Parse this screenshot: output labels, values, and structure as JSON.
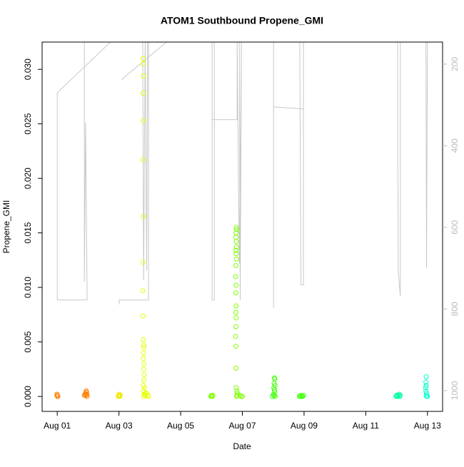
{
  "chart_data": {
    "type": "scatter",
    "title": "ATOM1 Southbound Propene_GMI",
    "x_label": "Date",
    "y_label": "Propene_GMI",
    "xlim": [
      0.51,
      13.49
    ],
    "ylim": [
      -0.00137,
      0.0325
    ],
    "y2lim": [
      1051,
      146
    ],
    "xticks": [
      {
        "value": 1,
        "label": "Aug 01"
      },
      {
        "value": 3,
        "label": "Aug 03"
      },
      {
        "value": 5,
        "label": "Aug 05"
      },
      {
        "value": 7,
        "label": "Aug 07"
      },
      {
        "value": 9,
        "label": "Aug 09"
      },
      {
        "value": 11,
        "label": "Aug 11"
      },
      {
        "value": 13,
        "label": "Aug 13"
      }
    ],
    "yticks": [
      {
        "value": 0,
        "label": "0.000"
      },
      {
        "value": 0.005,
        "label": "0.005"
      },
      {
        "value": 0.01,
        "label": "0.010"
      },
      {
        "value": 0.015,
        "label": "0.015"
      },
      {
        "value": 0.02,
        "label": "0.020"
      },
      {
        "value": 0.025,
        "label": "0.025"
      },
      {
        "value": 0.03,
        "label": "0.030"
      }
    ],
    "y2ticks": [
      200,
      400,
      600,
      800,
      1000
    ],
    "y2color": "#bbbbbb",
    "series": [
      {
        "type": "line",
        "axis": "y2",
        "color": "#c8c8c8",
        "x": [
          1.0,
          1.0,
          2.73,
          null,
          1.88,
          1.88,
          1.92,
          1.97,
          null,
          1.0,
          1.97,
          null,
          3.01,
          3.01,
          3.96,
          3.96,
          null,
          3.08,
          4.54,
          null,
          3.77,
          3.8,
          3.85,
          3.9,
          3.93,
          null,
          6.02,
          6.02,
          6.09,
          6.09,
          null,
          6.02,
          6.83,
          6.83,
          6.9,
          6.97,
          6.93,
          6.9,
          null,
          8.01,
          8.01,
          null,
          8.01,
          8.98,
          null,
          8.86,
          8.9,
          8.98,
          8.98,
          null,
          12.03,
          12.05,
          12.12,
          12.12,
          null,
          12.95,
          12.97,
          13.0
        ],
        "values": [
          778,
          270,
          146,
          null,
          146,
          733,
          343,
          778,
          null,
          778,
          778,
          null,
          789,
          778,
          778,
          146,
          null,
          238,
          146,
          null,
          146,
          729,
          146,
          705,
          146,
          null,
          146,
          778,
          778,
          146,
          null,
          336,
          336,
          146,
          689,
          146,
          778,
          146,
          null,
          797,
          146,
          null,
          305,
          310,
          null,
          146,
          741,
          741,
          146,
          null,
          146,
          707,
          768,
          146,
          null,
          146,
          700,
          146
        ]
      },
      {
        "type": "scatter",
        "color": "#ff8000",
        "x": [
          0.99,
          1.0,
          1.01,
          1.0,
          1.02,
          1.88,
          1.9,
          1.92,
          1.94,
          1.96,
          1.97,
          1.93,
          1.95
        ],
        "values": [
          0.0002,
          0.0001,
          0,
          0.0001,
          0,
          0.0001,
          0.0002,
          0.0003,
          0.0005,
          0.0002,
          0,
          0.0001,
          0.0004
        ]
      },
      {
        "type": "scatter",
        "color": "#f0e800",
        "x": [
          2.98,
          3.0,
          3.02,
          3.04,
          3.01
        ],
        "values": [
          0,
          0.0001,
          0,
          0.0001,
          0.0002
        ]
      },
      {
        "type": "scatter",
        "color": "#e6ff00",
        "x": [
          3.78,
          3.78,
          3.79,
          3.78,
          3.79,
          3.78,
          3.79,
          3.78,
          3.77,
          3.78,
          3.79,
          3.8,
          3.81,
          3.8,
          3.79,
          3.81,
          3.8,
          3.82,
          3.81,
          3.79,
          3.83,
          3.8,
          3.84,
          3.82,
          3.85,
          3.8,
          3.9,
          3.93,
          3.96
        ],
        "values": [
          0.031,
          0.0305,
          0.0294,
          0.0278,
          0.0253,
          0.0217,
          0.0165,
          0.0123,
          0.0097,
          0.0074,
          0.0052,
          0.0047,
          0.0045,
          0.004,
          0.0035,
          0.003,
          0.0025,
          0.002,
          0.0015,
          0.001,
          0.0008,
          0.0005,
          0.0003,
          0.0002,
          0.0001,
          0,
          0.0003,
          0.0001,
          0
        ]
      },
      {
        "type": "scatter",
        "color": "#80ff00",
        "x": [
          5.98,
          6.0,
          6.02,
          6.04,
          6.01,
          6.8,
          6.81,
          6.8,
          6.79,
          6.8,
          6.81,
          6.79,
          6.8,
          6.81,
          6.79,
          6.78,
          6.8,
          6.79,
          6.8,
          6.79,
          6.8,
          6.79,
          6.78,
          6.79,
          6.79,
          6.8,
          6.82,
          6.84,
          6.83,
          6.81,
          6.92,
          6.96,
          7.0
        ],
        "values": [
          0,
          0.0001,
          0,
          0.0001,
          0,
          0.0155,
          0.0153,
          0.015,
          0.0146,
          0.0142,
          0.0137,
          0.0134,
          0.0131,
          0.0126,
          0.012,
          0.011,
          0.0102,
          0.0095,
          0.0083,
          0.0077,
          0.0072,
          0.0064,
          0.0055,
          0.0046,
          0.0026,
          0.0008,
          0.0005,
          0.0003,
          0.0001,
          0,
          0.0001,
          0,
          0
        ]
      },
      {
        "type": "scatter",
        "color": "#3cff00",
        "x": [
          7.98,
          8.04,
          8.05,
          8.03,
          8.06,
          8.02,
          8.04,
          8.05,
          8.01,
          8.06,
          8.03,
          8.85,
          8.9,
          8.95,
          8.98,
          8.88,
          8.93
        ],
        "values": [
          0,
          0.0017,
          0.0016,
          0.0012,
          0.001,
          0.0008,
          0.0006,
          0.0004,
          0.0002,
          0,
          0.0001,
          0,
          0.0001,
          0,
          0.0001,
          0,
          0
        ]
      },
      {
        "type": "scatter",
        "color": "#00ffa0",
        "x": [
          11.98,
          12.0,
          12.03,
          12.05,
          12.08,
          12.1,
          12.12
        ],
        "values": [
          0,
          0.0001,
          0,
          0.0001,
          0.0002,
          0,
          0.0001
        ]
      },
      {
        "type": "scatter",
        "color": "#00ffc8",
        "x": [
          12.96,
          12.95,
          12.96,
          12.94,
          12.95,
          12.97,
          12.96,
          12.98,
          13.0
        ],
        "values": [
          0.0018,
          0.0013,
          0.001,
          0.0008,
          0.0005,
          0.0003,
          0.0001,
          0,
          0
        ]
      }
    ]
  }
}
